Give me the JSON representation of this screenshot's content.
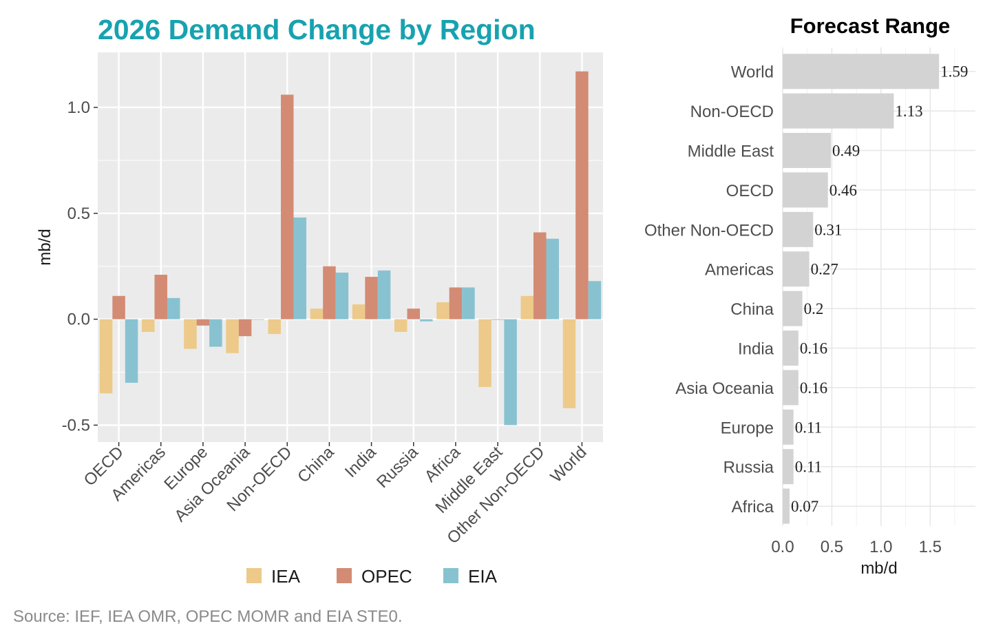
{
  "source_note": "Source: IEF, IEA OMR, OPEC MOMR and EIA STE0.",
  "colors": {
    "title": "#17a2b0",
    "panel_bg": "#ebebeb",
    "grid": "#ffffff",
    "range_bar": "#d3d3d3"
  },
  "chart_data": [
    {
      "type": "bar",
      "title": "2026 Demand Change by Region",
      "xlabel": "",
      "ylabel": "mb/d",
      "ylim": [
        -0.58,
        1.26
      ],
      "yticks": [
        {
          "value": -0.5,
          "label": "-0.5"
        },
        {
          "value": 0.0,
          "label": "0.0"
        },
        {
          "value": 0.5,
          "label": "0.5"
        },
        {
          "value": 1.0,
          "label": "1.0"
        }
      ],
      "grid": true,
      "legend": "bottom",
      "categories": [
        "OECD",
        "Americas",
        "Europe",
        "Asia Oceania",
        "Non-OECD",
        "China",
        "India",
        "Russia",
        "Africa",
        "Middle East",
        "Other Non-OECD",
        "World"
      ],
      "series": [
        {
          "name": "IEA",
          "color": "#edca8a",
          "values": [
            -0.35,
            -0.06,
            -0.14,
            -0.16,
            -0.07,
            0.05,
            0.07,
            -0.06,
            0.08,
            -0.32,
            0.11,
            -0.42
          ]
        },
        {
          "name": "OPEC",
          "color": "#d38b74",
          "values": [
            0.11,
            0.21,
            -0.03,
            -0.08,
            1.06,
            0.25,
            0.2,
            0.05,
            0.15,
            0.0,
            0.41,
            1.17
          ]
        },
        {
          "name": "EIA",
          "color": "#88c2d1",
          "values": [
            -0.3,
            0.1,
            -0.13,
            0.0,
            0.48,
            0.22,
            0.23,
            -0.01,
            0.15,
            -0.5,
            0.38,
            0.18
          ]
        }
      ]
    },
    {
      "type": "bar",
      "orientation": "horizontal",
      "title": "Forecast Range",
      "xlabel": "mb/d",
      "ylabel": "",
      "xlim": [
        0,
        1.96
      ],
      "xticks": [
        {
          "value": 0.0,
          "label": "0.0"
        },
        {
          "value": 0.5,
          "label": "0.5"
        },
        {
          "value": 1.0,
          "label": "1.0"
        },
        {
          "value": 1.5,
          "label": "1.5"
        }
      ],
      "grid": true,
      "categories": [
        "World",
        "Non-OECD",
        "Middle East",
        "OECD",
        "Other Non-OECD",
        "Americas",
        "China",
        "India",
        "Asia Oceania",
        "Europe",
        "Russia",
        "Africa"
      ],
      "values": [
        1.59,
        1.13,
        0.49,
        0.46,
        0.31,
        0.27,
        0.2,
        0.16,
        0.16,
        0.11,
        0.11,
        0.07
      ],
      "value_labels": [
        "1.59",
        "1.13",
        "0.49",
        "0.46",
        "0.31",
        "0.27",
        "0.2",
        "0.16",
        "0.16",
        "0.11",
        "0.11",
        "0.07"
      ]
    }
  ]
}
